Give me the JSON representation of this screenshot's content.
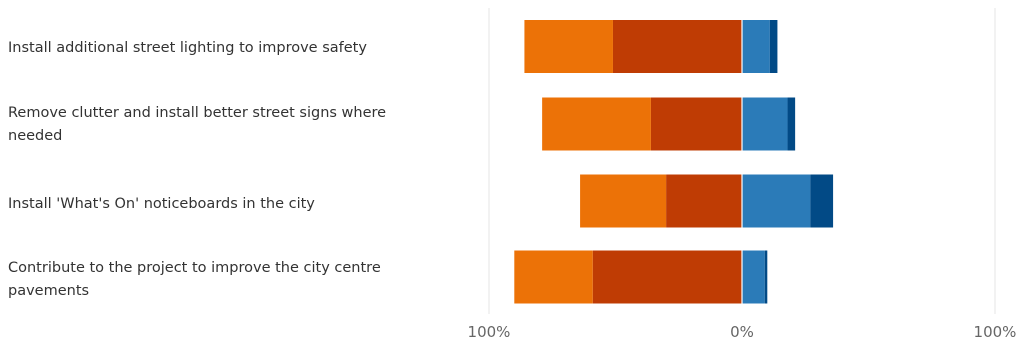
{
  "chart_data": {
    "type": "bar",
    "orientation": "horizontal",
    "stacking": "diverging",
    "categories": [
      "Install additional street lighting to improve safety",
      "Remove clutter and install better street signs where needed",
      "Install 'What's On' noticeboards in the city",
      "Contribute to the project to improve the city centre pavements"
    ],
    "series": [
      {
        "side": "negative",
        "color": "#BF3C04",
        "values": [
          51,
          36,
          30,
          59
        ]
      },
      {
        "side": "negative",
        "color": "#EC7207",
        "values": [
          35,
          43,
          34,
          31
        ]
      },
      {
        "side": "positive",
        "color": "#2B7BB8",
        "values": [
          11,
          18,
          27,
          9
        ]
      },
      {
        "side": "positive",
        "color": "#024A86",
        "values": [
          3,
          3,
          9,
          1
        ]
      }
    ],
    "x_ticks": [
      "100%",
      "0%",
      "100%"
    ],
    "xlim": [
      -100,
      100
    ],
    "grid": true,
    "colors": {
      "grid": "#E6E6E6",
      "tick_text": "#666666",
      "label_text": "#333333"
    }
  }
}
